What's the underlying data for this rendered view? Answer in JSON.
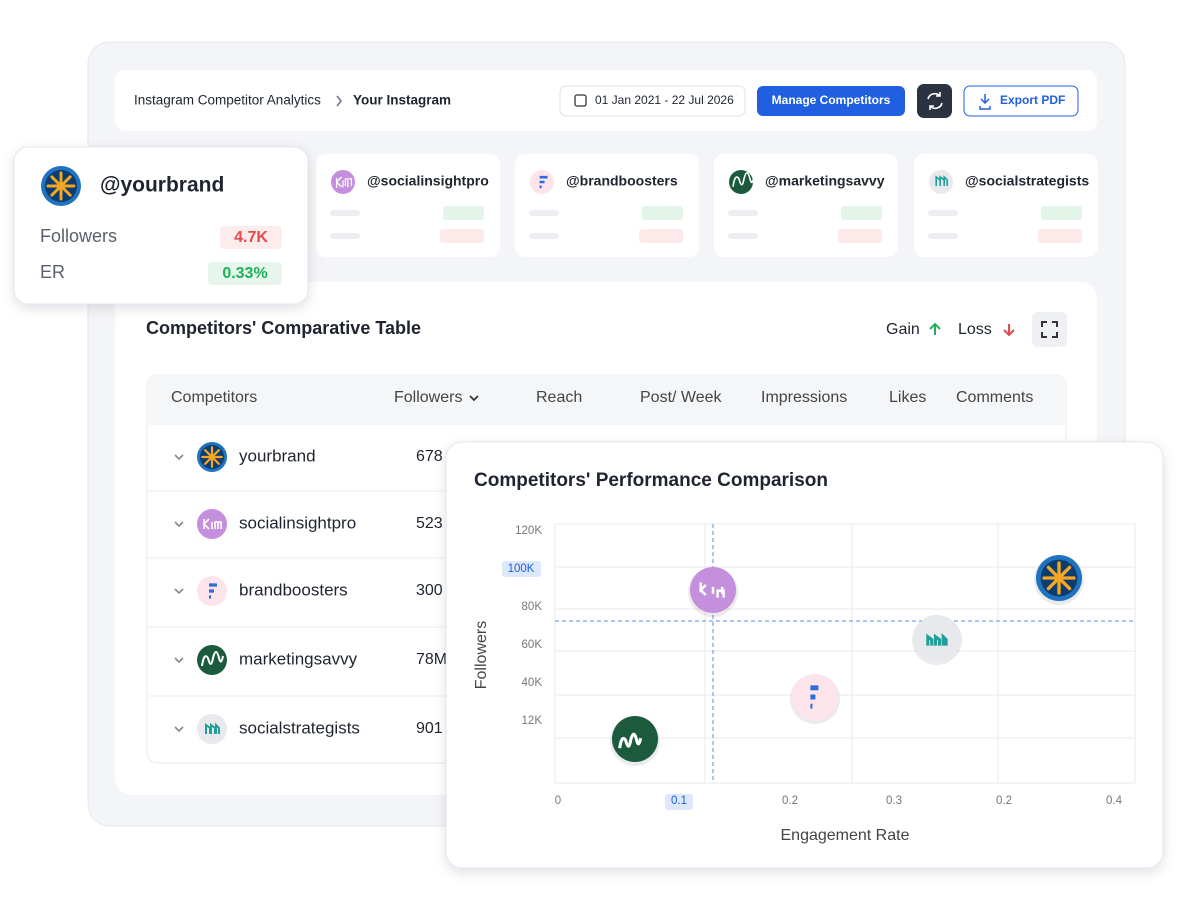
{
  "header": {
    "breadcrumb": [
      "Instagram Competitor Analytics",
      "Your Instagram"
    ],
    "date_range": "01 Jan 2021 - 22 Jul 2026",
    "buttons": [
      "Manage Competitors",
      "Export PDF"
    ]
  },
  "brand_card": {
    "handle": "@yourbrand",
    "metrics": [
      {
        "label": "Followers",
        "value": "4.7K"
      },
      {
        "label": "ER",
        "value": "0.33%"
      }
    ]
  },
  "competitor_cards": [
    "@socialinsightpro",
    "@brandboosters",
    "@marketingsavvy",
    "@socialstrategists"
  ],
  "table": {
    "title": "Competitors' Comparative Table",
    "legend": [
      "Gain",
      "Loss"
    ],
    "columns": [
      "Competitors",
      "Followers",
      "Reach",
      "Post/ Week",
      "Impressions",
      "Likes",
      "Comments"
    ],
    "rows": [
      [
        "yourbrand",
        "678"
      ],
      [
        "socialinsightpro",
        "523"
      ],
      [
        "brandboosters",
        "300"
      ],
      [
        "marketingsavvy",
        "78M"
      ],
      [
        "socialstrategists",
        "901"
      ]
    ]
  },
  "chart": {
    "title": "Competitors' Performance Comparison",
    "y_label": "Followers",
    "x_label": "Engagement Rate",
    "y_ticks": [
      "120K",
      "100K",
      "80K",
      "60K",
      "40K",
      "12K"
    ],
    "x_ticks": [
      "0",
      "0.1",
      "0.2",
      "0.3",
      "0.2",
      "0.4"
    ]
  }
}
